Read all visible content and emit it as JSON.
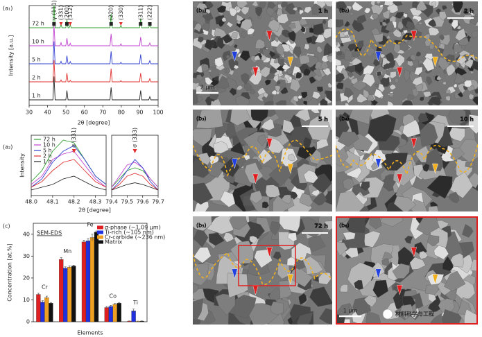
{
  "chart_data": [
    {
      "type": "line",
      "panel": "(a₁)",
      "xlabel": "2θ [degree]",
      "ylabel": "Intensity [a.u.]",
      "xlim": [
        30,
        100
      ],
      "xticks": [
        30,
        40,
        50,
        60,
        70,
        80,
        90,
        100
      ],
      "x": [
        30,
        42.9,
        43.5,
        44.1,
        46.8,
        47.3,
        47.8,
        49.9,
        50.5,
        51.1,
        51.8,
        52.3,
        52.8,
        73.9,
        74.5,
        75.1,
        79.3,
        79.8,
        80.3,
        89.9,
        90.5,
        91.1,
        94.9,
        95.5,
        96.1,
        100
      ],
      "series": [
        {
          "name": "1 h",
          "color": "#222222",
          "values": [
            0,
            0,
            75,
            0,
            0,
            0,
            0,
            0,
            30,
            0,
            0,
            0,
            0,
            0,
            40,
            0,
            0,
            0,
            0,
            0,
            30,
            0,
            0,
            10,
            0,
            0
          ]
        },
        {
          "name": "2 h",
          "color": "#e03030",
          "values": [
            0,
            0,
            70,
            0,
            0,
            6,
            0,
            0,
            28,
            0,
            0,
            5,
            0,
            0,
            42,
            0,
            0,
            4,
            0,
            0,
            28,
            0,
            0,
            10,
            0,
            0
          ]
        },
        {
          "name": "5 h",
          "color": "#3040d0",
          "values": [
            0,
            0,
            72,
            0,
            0,
            8,
            0,
            0,
            26,
            0,
            0,
            7,
            0,
            0,
            40,
            0,
            0,
            5,
            0,
            0,
            30,
            0,
            0,
            10,
            0,
            0
          ]
        },
        {
          "name": "10 h",
          "color": "#c040d0",
          "values": [
            0,
            0,
            65,
            0,
            0,
            10,
            0,
            0,
            24,
            0,
            0,
            8,
            0,
            0,
            38,
            0,
            0,
            6,
            0,
            0,
            28,
            0,
            0,
            9,
            0,
            0
          ]
        },
        {
          "name": "72 h",
          "color": "#30a030",
          "values": [
            0,
            0,
            80,
            0,
            0,
            12,
            0,
            0,
            25,
            0,
            0,
            10,
            0,
            0,
            45,
            0,
            0,
            8,
            0,
            0,
            30,
            0,
            0,
            10,
            0,
            0
          ]
        }
      ],
      "annotations": [
        {
          "text": "γ (111)",
          "x": 43.5,
          "color": "#222222"
        },
        {
          "text": "(331)",
          "x": 47.3,
          "color": "#e03030"
        },
        {
          "text": "(200)",
          "x": 50.5,
          "color": "#222222"
        },
        {
          "text": "(312)",
          "x": 52.3,
          "color": "#e03030"
        },
        {
          "text": "(220)",
          "x": 74.5,
          "color": "#222222"
        },
        {
          "text": "(330)",
          "x": 79.8,
          "color": "#e03030"
        },
        {
          "text": "(311)",
          "x": 90.5,
          "color": "#222222"
        },
        {
          "text": "(222)",
          "x": 95.5,
          "color": "#222222"
        }
      ]
    },
    {
      "type": "line",
      "panel": "(a₂)",
      "xlabel": "2θ [degree]",
      "ylabel": "Intensity",
      "segments": [
        {
          "xlim": [
            48.0,
            48.35
          ],
          "xticks": [
            {
              "value": 48.0,
              "label": "48.0"
            },
            48.1,
            48.2,
            48.3
          ]
        },
        {
          "xlim": [
            79.4,
            79.7
          ],
          "xticks": [
            79.4,
            79.5,
            79.6,
            79.7
          ]
        }
      ],
      "x": [
        48.0,
        48.05,
        48.1,
        48.15,
        48.2,
        48.25,
        48.3,
        48.35,
        79.4,
        79.45,
        79.5,
        79.55,
        79.6,
        79.65,
        79.7
      ],
      "series": [
        {
          "name": "72 h",
          "color": "#30a030",
          "values": [
            20,
            40,
            75,
            95,
            90,
            60,
            30,
            15,
            10,
            25,
            40,
            45,
            40,
            25,
            10
          ]
        },
        {
          "name": "10 h",
          "color": "#c040d0",
          "values": [
            15,
            30,
            60,
            70,
            75,
            50,
            25,
            10,
            10,
            30,
            50,
            55,
            45,
            25,
            10
          ]
        },
        {
          "name": "5 h",
          "color": "#3040d0",
          "values": [
            10,
            25,
            55,
            75,
            85,
            60,
            30,
            15,
            5,
            20,
            40,
            60,
            45,
            20,
            5
          ]
        },
        {
          "name": "2 h",
          "color": "#e03030",
          "values": [
            10,
            20,
            40,
            55,
            60,
            40,
            20,
            10,
            5,
            15,
            30,
            35,
            30,
            15,
            5
          ]
        },
        {
          "name": "1 h",
          "color": "#222222",
          "values": [
            5,
            10,
            15,
            25,
            30,
            20,
            10,
            5,
            5,
            10,
            15,
            18,
            15,
            10,
            5
          ]
        }
      ],
      "annotations": [
        {
          "text": "σ (331)",
          "x": 48.2
        },
        {
          "text": "σ (333)",
          "x": 79.55
        }
      ]
    },
    {
      "type": "bar",
      "panel": "(c)",
      "title": "SEM-EDS",
      "xlabel": "Elements",
      "ylabel": "Concentration [at.%]",
      "ylim": [
        0,
        45
      ],
      "yticks": [
        0,
        10,
        20,
        30,
        40
      ],
      "categories": [
        "Cr",
        "Mn",
        "Fe",
        "Co",
        "Ti"
      ],
      "series": [
        {
          "name": "σ-phase (~1.09 μm)",
          "color": "#e02020",
          "values": [
            12.5,
            28.5,
            36.5,
            6.5,
            0.3
          ],
          "errors": [
            0.5,
            0.8,
            0.8,
            0.5,
            0.1
          ]
        },
        {
          "name": "Ti-rich (~105 nm)",
          "color": "#2030e0",
          "values": [
            9,
            24.5,
            37,
            7,
            5
          ],
          "errors": [
            0.6,
            0.6,
            1.0,
            0.5,
            0.8
          ]
        },
        {
          "name": "Cr-carbide (~236 nm)",
          "color": "#f0a020",
          "values": [
            11,
            25,
            38.5,
            8,
            0.2
          ],
          "errors": [
            0.7,
            0.5,
            1.5,
            0.4,
            0.1
          ]
        },
        {
          "name": "Matrix",
          "color": "#111111",
          "values": [
            8.5,
            25.5,
            41,
            8.5,
            0.3
          ],
          "errors": [
            0.3,
            0.4,
            0.5,
            0.3,
            0.1
          ]
        }
      ]
    }
  ],
  "images": [
    {
      "label": "(b₁)",
      "time": "1 h",
      "scale": "2 μm"
    },
    {
      "label": "(b₂)",
      "time": "2 h"
    },
    {
      "label": "(b₃)",
      "time": "5 h"
    },
    {
      "label": "(b₄)",
      "time": "10 h"
    },
    {
      "label": "(b₅)",
      "time": "72 h"
    },
    {
      "label": "(b₆)",
      "scale": "1 μm",
      "watermark": "材料科学与工程"
    }
  ]
}
